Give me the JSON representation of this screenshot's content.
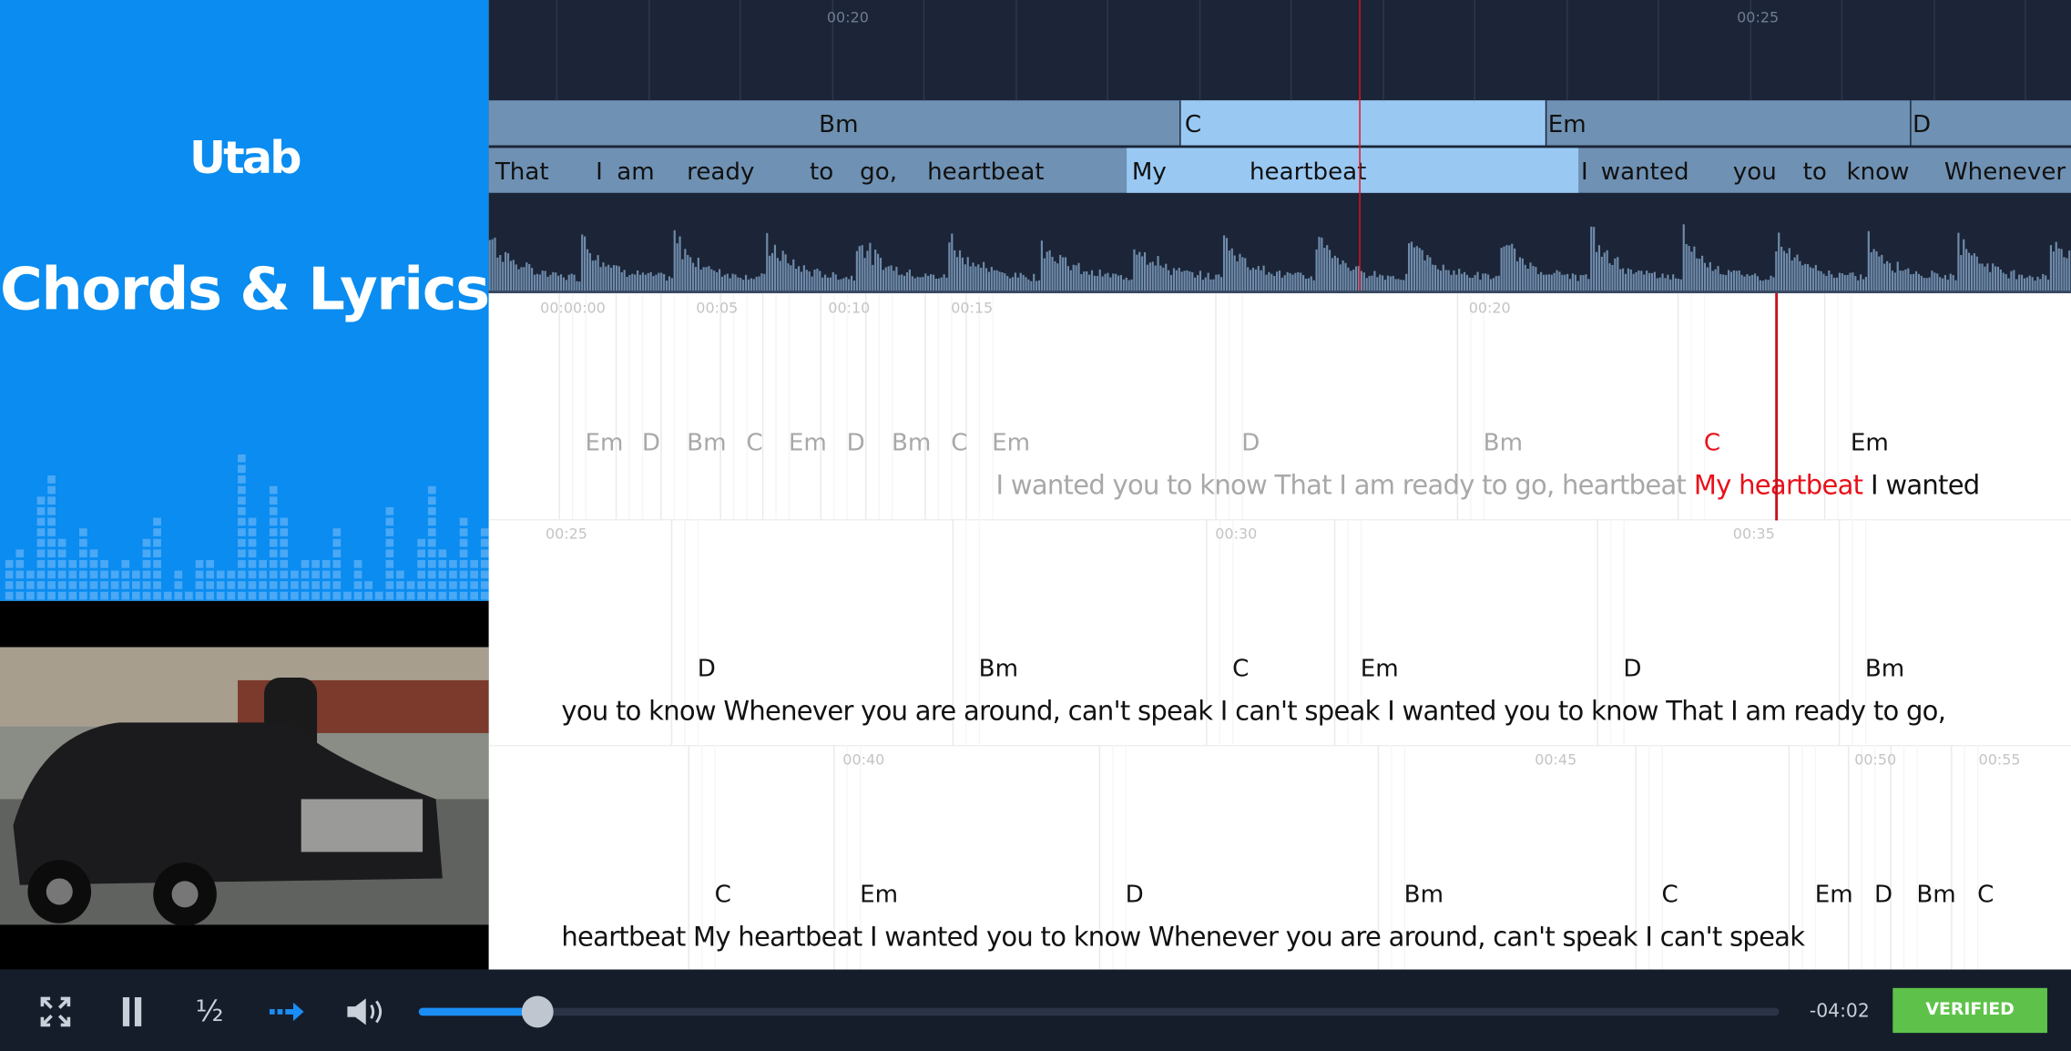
{
  "sidebar": {
    "logo": "Utab",
    "title": "Chords & Lyrics"
  },
  "timeline": {
    "times": [
      "00:20",
      "00:25"
    ],
    "chords": [
      "Bm",
      "C",
      "Em",
      "D"
    ],
    "words": [
      "That",
      "I",
      "am",
      "ready",
      "to",
      "go,",
      "heartbeat",
      "My",
      "heartbeat",
      "I",
      "wanted",
      "you",
      "to",
      "know",
      "Whenever"
    ]
  },
  "rows": [
    {
      "times": [
        "00:00:00",
        "00:05",
        "00:10",
        "00:15",
        "00:20"
      ],
      "chords": [
        {
          "name": "Em",
          "color": "#a8a8a8"
        },
        {
          "name": "D",
          "color": "#a8a8a8"
        },
        {
          "name": "Bm",
          "color": "#a8a8a8"
        },
        {
          "name": "C",
          "color": "#a8a8a8"
        },
        {
          "name": "Em",
          "color": "#a8a8a8"
        },
        {
          "name": "D",
          "color": "#a8a8a8"
        },
        {
          "name": "Bm",
          "color": "#a8a8a8"
        },
        {
          "name": "C",
          "color": "#a8a8a8"
        },
        {
          "name": "Em",
          "color": "#a8a8a8"
        },
        {
          "name": "D",
          "color": "#a8a8a8"
        },
        {
          "name": "Bm",
          "color": "#a8a8a8"
        },
        {
          "name": "C",
          "color": "#e8101a"
        },
        {
          "name": "Em",
          "color": "#111111"
        }
      ],
      "lyrics": [
        {
          "text": "I wanted you to know That I am ready to go, heartbeat",
          "color": "#a8a8a8"
        },
        {
          "text": "My heartbeat",
          "color": "#e8101a"
        },
        {
          "text": "I wanted",
          "color": "#111111"
        }
      ]
    },
    {
      "times": [
        "00:25",
        "00:30",
        "00:35"
      ],
      "chords": [
        "D",
        "Bm",
        "C",
        "Em",
        "D",
        "Bm"
      ],
      "lyrics": [
        {
          "text": "you to know Whenever you are around, can't speak I can't speak I wanted you to know That I am ready to go,",
          "color": "#111111"
        }
      ]
    },
    {
      "times": [
        "00:40",
        "00:45",
        "00:50",
        "00:55"
      ],
      "chords": [
        "C",
        "Em",
        "D",
        "Bm",
        "C",
        "Em",
        "D",
        "Bm",
        "C"
      ],
      "lyrics": [
        {
          "text": "heartbeat My heartbeat I wanted you to know Whenever you are around, can't speak I can't speak",
          "color": "#111111"
        }
      ]
    }
  ],
  "controls": {
    "speed": "½",
    "remaining": "-04:02",
    "button": "VERIFIED"
  }
}
